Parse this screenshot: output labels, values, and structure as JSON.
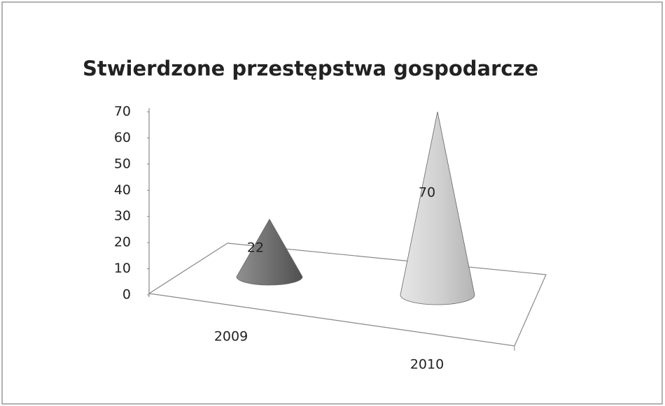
{
  "chart_data": {
    "type": "cone3d",
    "title": "Stwierdzone przestępstwa gospodarcze",
    "categories": [
      "2009",
      "2010"
    ],
    "values": [
      22,
      70
    ],
    "colors": [
      "#707070",
      "#d2d2d2"
    ],
    "ylim": [
      0,
      70
    ],
    "yticks": [
      0,
      10,
      20,
      30,
      40,
      50,
      60,
      70
    ],
    "data_labels": true
  }
}
